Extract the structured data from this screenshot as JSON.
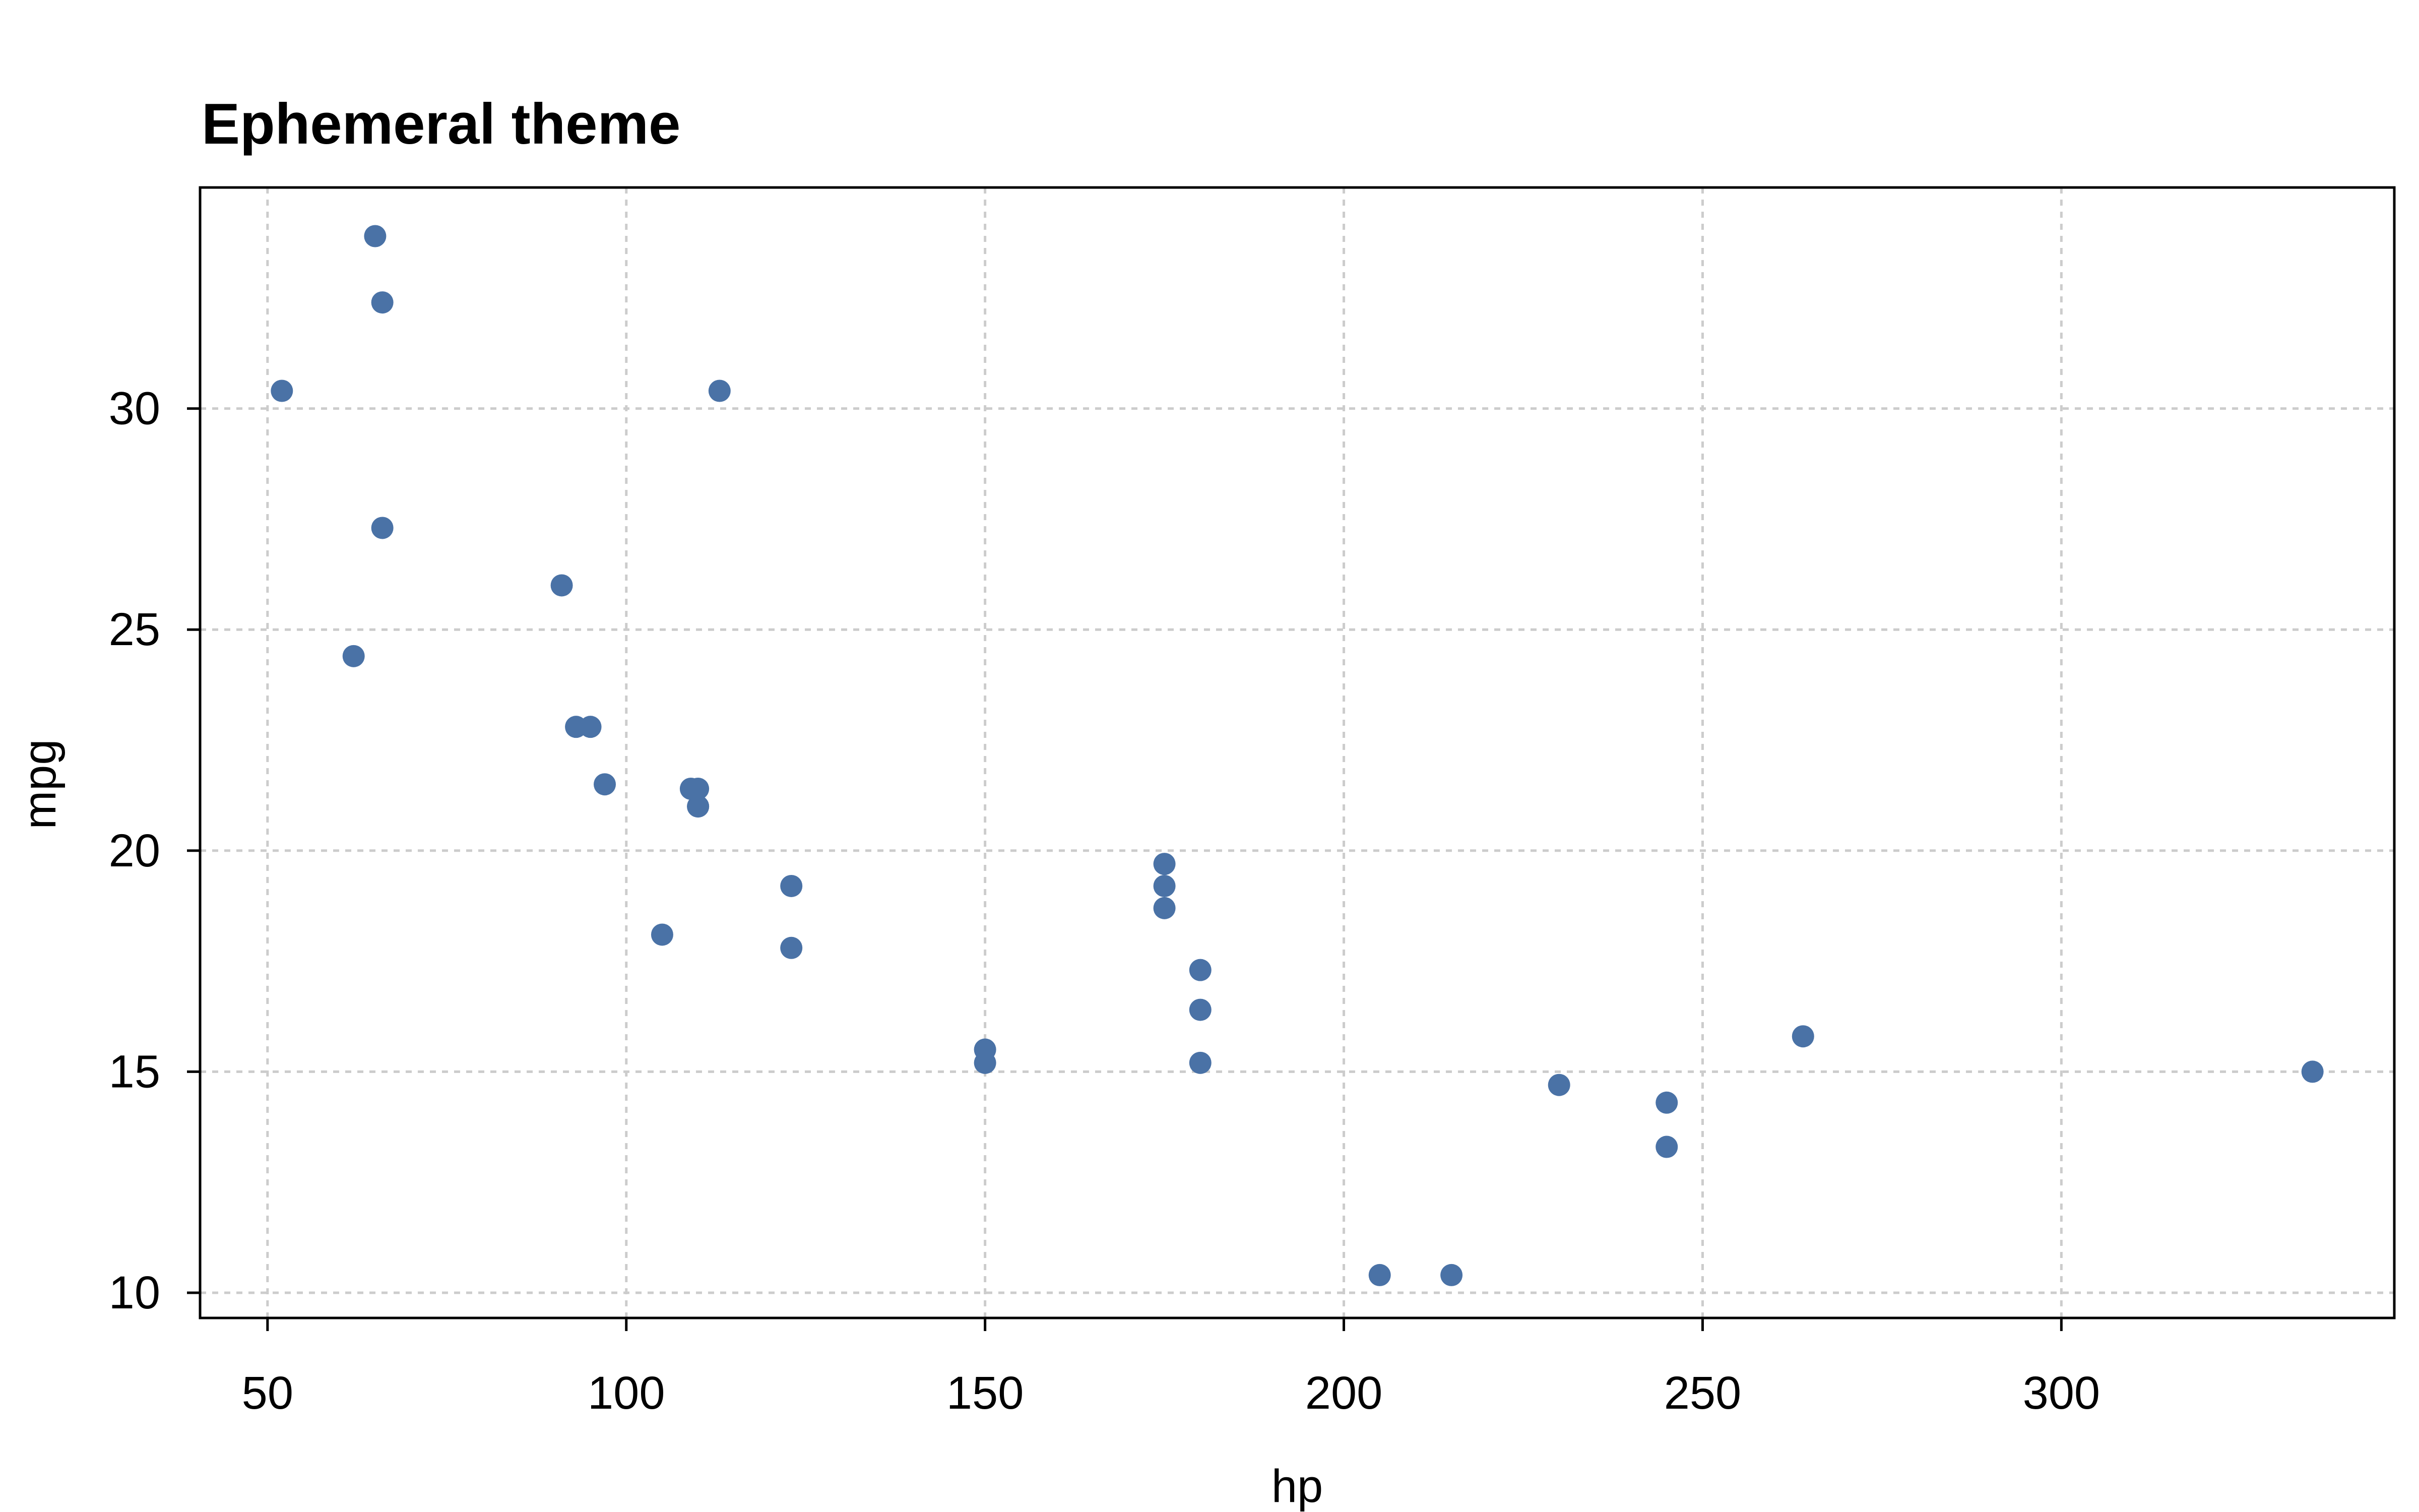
{
  "chart_data": {
    "type": "scatter",
    "title": "Ephemeral theme",
    "xlabel": "hp",
    "ylabel": "mpg",
    "xlim": [
      40.6,
      346.4
    ],
    "ylim": [
      9.43,
      35.0
    ],
    "x_ticks": [
      50,
      100,
      150,
      200,
      250,
      300
    ],
    "y_ticks": [
      10,
      15,
      20,
      25,
      30
    ],
    "x_tick_labels": [
      "50",
      "100",
      "150",
      "200",
      "250",
      "300"
    ],
    "y_tick_labels": [
      "10",
      "15",
      "20",
      "25",
      "30"
    ],
    "grid": true,
    "point_color": "#4a72a6",
    "series": [
      {
        "points": [
          [
            110,
            21.0
          ],
          [
            110,
            21.0
          ],
          [
            93,
            22.8
          ],
          [
            110,
            21.4
          ],
          [
            175,
            18.7
          ],
          [
            105,
            18.1
          ],
          [
            245,
            14.3
          ],
          [
            62,
            24.4
          ],
          [
            95,
            22.8
          ],
          [
            123,
            19.2
          ],
          [
            123,
            17.8
          ],
          [
            180,
            16.4
          ],
          [
            180,
            17.3
          ],
          [
            180,
            15.2
          ],
          [
            205,
            10.4
          ],
          [
            215,
            10.4
          ],
          [
            230,
            14.7
          ],
          [
            66,
            32.4
          ],
          [
            52,
            30.4
          ],
          [
            65,
            33.9
          ],
          [
            97,
            21.5
          ],
          [
            150,
            15.5
          ],
          [
            150,
            15.2
          ],
          [
            245,
            13.3
          ],
          [
            175,
            19.2
          ],
          [
            66,
            27.3
          ],
          [
            91,
            26.0
          ],
          [
            113,
            30.4
          ],
          [
            264,
            15.8
          ],
          [
            175,
            19.7
          ],
          [
            335,
            15.0
          ],
          [
            109,
            21.4
          ]
        ]
      }
    ]
  }
}
